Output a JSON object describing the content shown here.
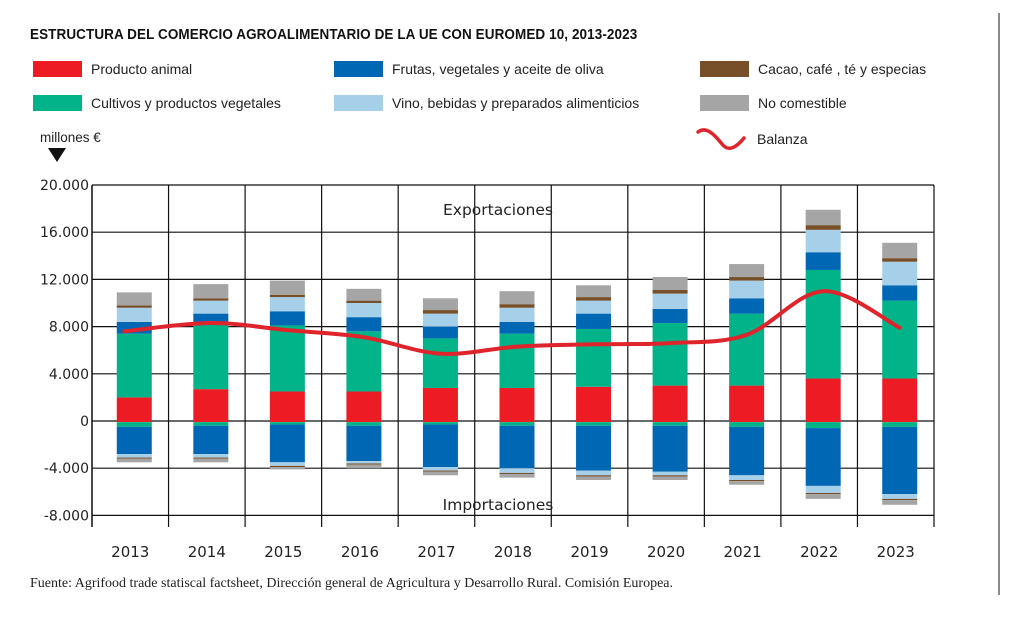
{
  "chart_data": {
    "type": "bar",
    "subtype": "stacked-diverging-bar-with-line",
    "title": "ESTRUCTURA DEL COMERCIO AGROALIMENTARIO DE LA UE CON EUROMED 10, 2013-2023",
    "ylabel": "millones €",
    "xlabel": "",
    "ylim": [
      -8000,
      20000
    ],
    "yticks": [
      20000,
      16000,
      12000,
      8000,
      4000,
      0,
      -4000,
      -8000
    ],
    "ytick_labels": [
      "20.000",
      "16.000",
      "12.000",
      "8.000",
      "4.000",
      "0",
      "-4.000",
      "-8.000"
    ],
    "grid": true,
    "zone_labels": {
      "top": "Exportaciones",
      "bottom": "Importaciones"
    },
    "categories": [
      "2013",
      "2014",
      "2015",
      "2016",
      "2017",
      "2018",
      "2019",
      "2020",
      "2021",
      "2022",
      "2023"
    ],
    "series": [
      {
        "key": "animal",
        "name": "Producto animal",
        "color": "#ed1c24",
        "exports": [
          2000,
          2700,
          2500,
          2500,
          2800,
          2800,
          2900,
          3000,
          3000,
          3600,
          3600
        ],
        "imports": [
          -100,
          -100,
          -100,
          -100,
          -100,
          -100,
          -100,
          -100,
          -100,
          -100,
          -100
        ]
      },
      {
        "key": "cultivos",
        "name": "Cultivos y productos vegetales",
        "color": "#00b388",
        "exports": [
          5400,
          5600,
          5600,
          5100,
          4200,
          4600,
          4900,
          5300,
          6100,
          9200,
          6600
        ],
        "imports": [
          -400,
          -300,
          -200,
          -300,
          -200,
          -300,
          -300,
          -300,
          -400,
          -500,
          -400
        ]
      },
      {
        "key": "frutas",
        "name": "Frutas, vegetales y aceite de oliva",
        "color": "#0067b5",
        "exports": [
          1000,
          800,
          1200,
          1200,
          1000,
          1000,
          1300,
          1200,
          1300,
          1500,
          1300
        ],
        "imports": [
          -2300,
          -2400,
          -3200,
          -3000,
          -3600,
          -3600,
          -3800,
          -3900,
          -4100,
          -4900,
          -5700
        ]
      },
      {
        "key": "vino",
        "name": "Vino, bebidas y preparados alimenticios",
        "color": "#a6cfea",
        "exports": [
          1200,
          1100,
          1200,
          1200,
          1100,
          1200,
          1100,
          1300,
          1500,
          1900,
          2000
        ],
        "imports": [
          -300,
          -300,
          -300,
          -200,
          -300,
          -400,
          -400,
          -300,
          -400,
          -600,
          -400
        ]
      },
      {
        "key": "cacao",
        "name": "Cacao, café , té y especias",
        "color": "#774f28",
        "exports": [
          200,
          200,
          200,
          200,
          300,
          300,
          300,
          300,
          300,
          400,
          300
        ],
        "imports": [
          -100,
          -100,
          -100,
          -100,
          -100,
          -100,
          -100,
          -100,
          -100,
          -100,
          -100
        ]
      },
      {
        "key": "nocomestible",
        "name": "No comestible",
        "color": "#a5a5a5",
        "exports": [
          1100,
          1200,
          1200,
          1000,
          1000,
          1100,
          1000,
          1100,
          1100,
          1300,
          1300
        ],
        "imports": [
          -300,
          -300,
          -200,
          -300,
          -300,
          -300,
          -300,
          -300,
          -300,
          -400,
          -400
        ]
      }
    ],
    "line": {
      "name": "Balanza",
      "color": "#e0242c",
      "values": [
        7600,
        8300,
        7700,
        7100,
        5700,
        6300,
        6500,
        6600,
        7300,
        11000,
        7900
      ]
    },
    "legend_position": "top"
  },
  "texts": {
    "unit_label": "millones €",
    "source": "Fuente: Agrifood trade statiscal factsheet, Dirección general de Agricultura y Desarrollo Rural. Comisión Europea."
  },
  "legend": [
    {
      "label": "Producto animal",
      "color": "#ed1c24"
    },
    {
      "label": "Frutas, vegetales y aceite de oliva",
      "color": "#0067b5"
    },
    {
      "label": "Cacao, café , té y especias",
      "color": "#774f28"
    },
    {
      "label": "Cultivos y productos vegetales",
      "color": "#00b388"
    },
    {
      "label": "Vino, bebidas y preparados alimenticios",
      "color": "#a6cfea"
    },
    {
      "label": "No comestible",
      "color": "#a5a5a5"
    },
    {
      "label": "Balanza",
      "color": "#e0242c"
    }
  ]
}
